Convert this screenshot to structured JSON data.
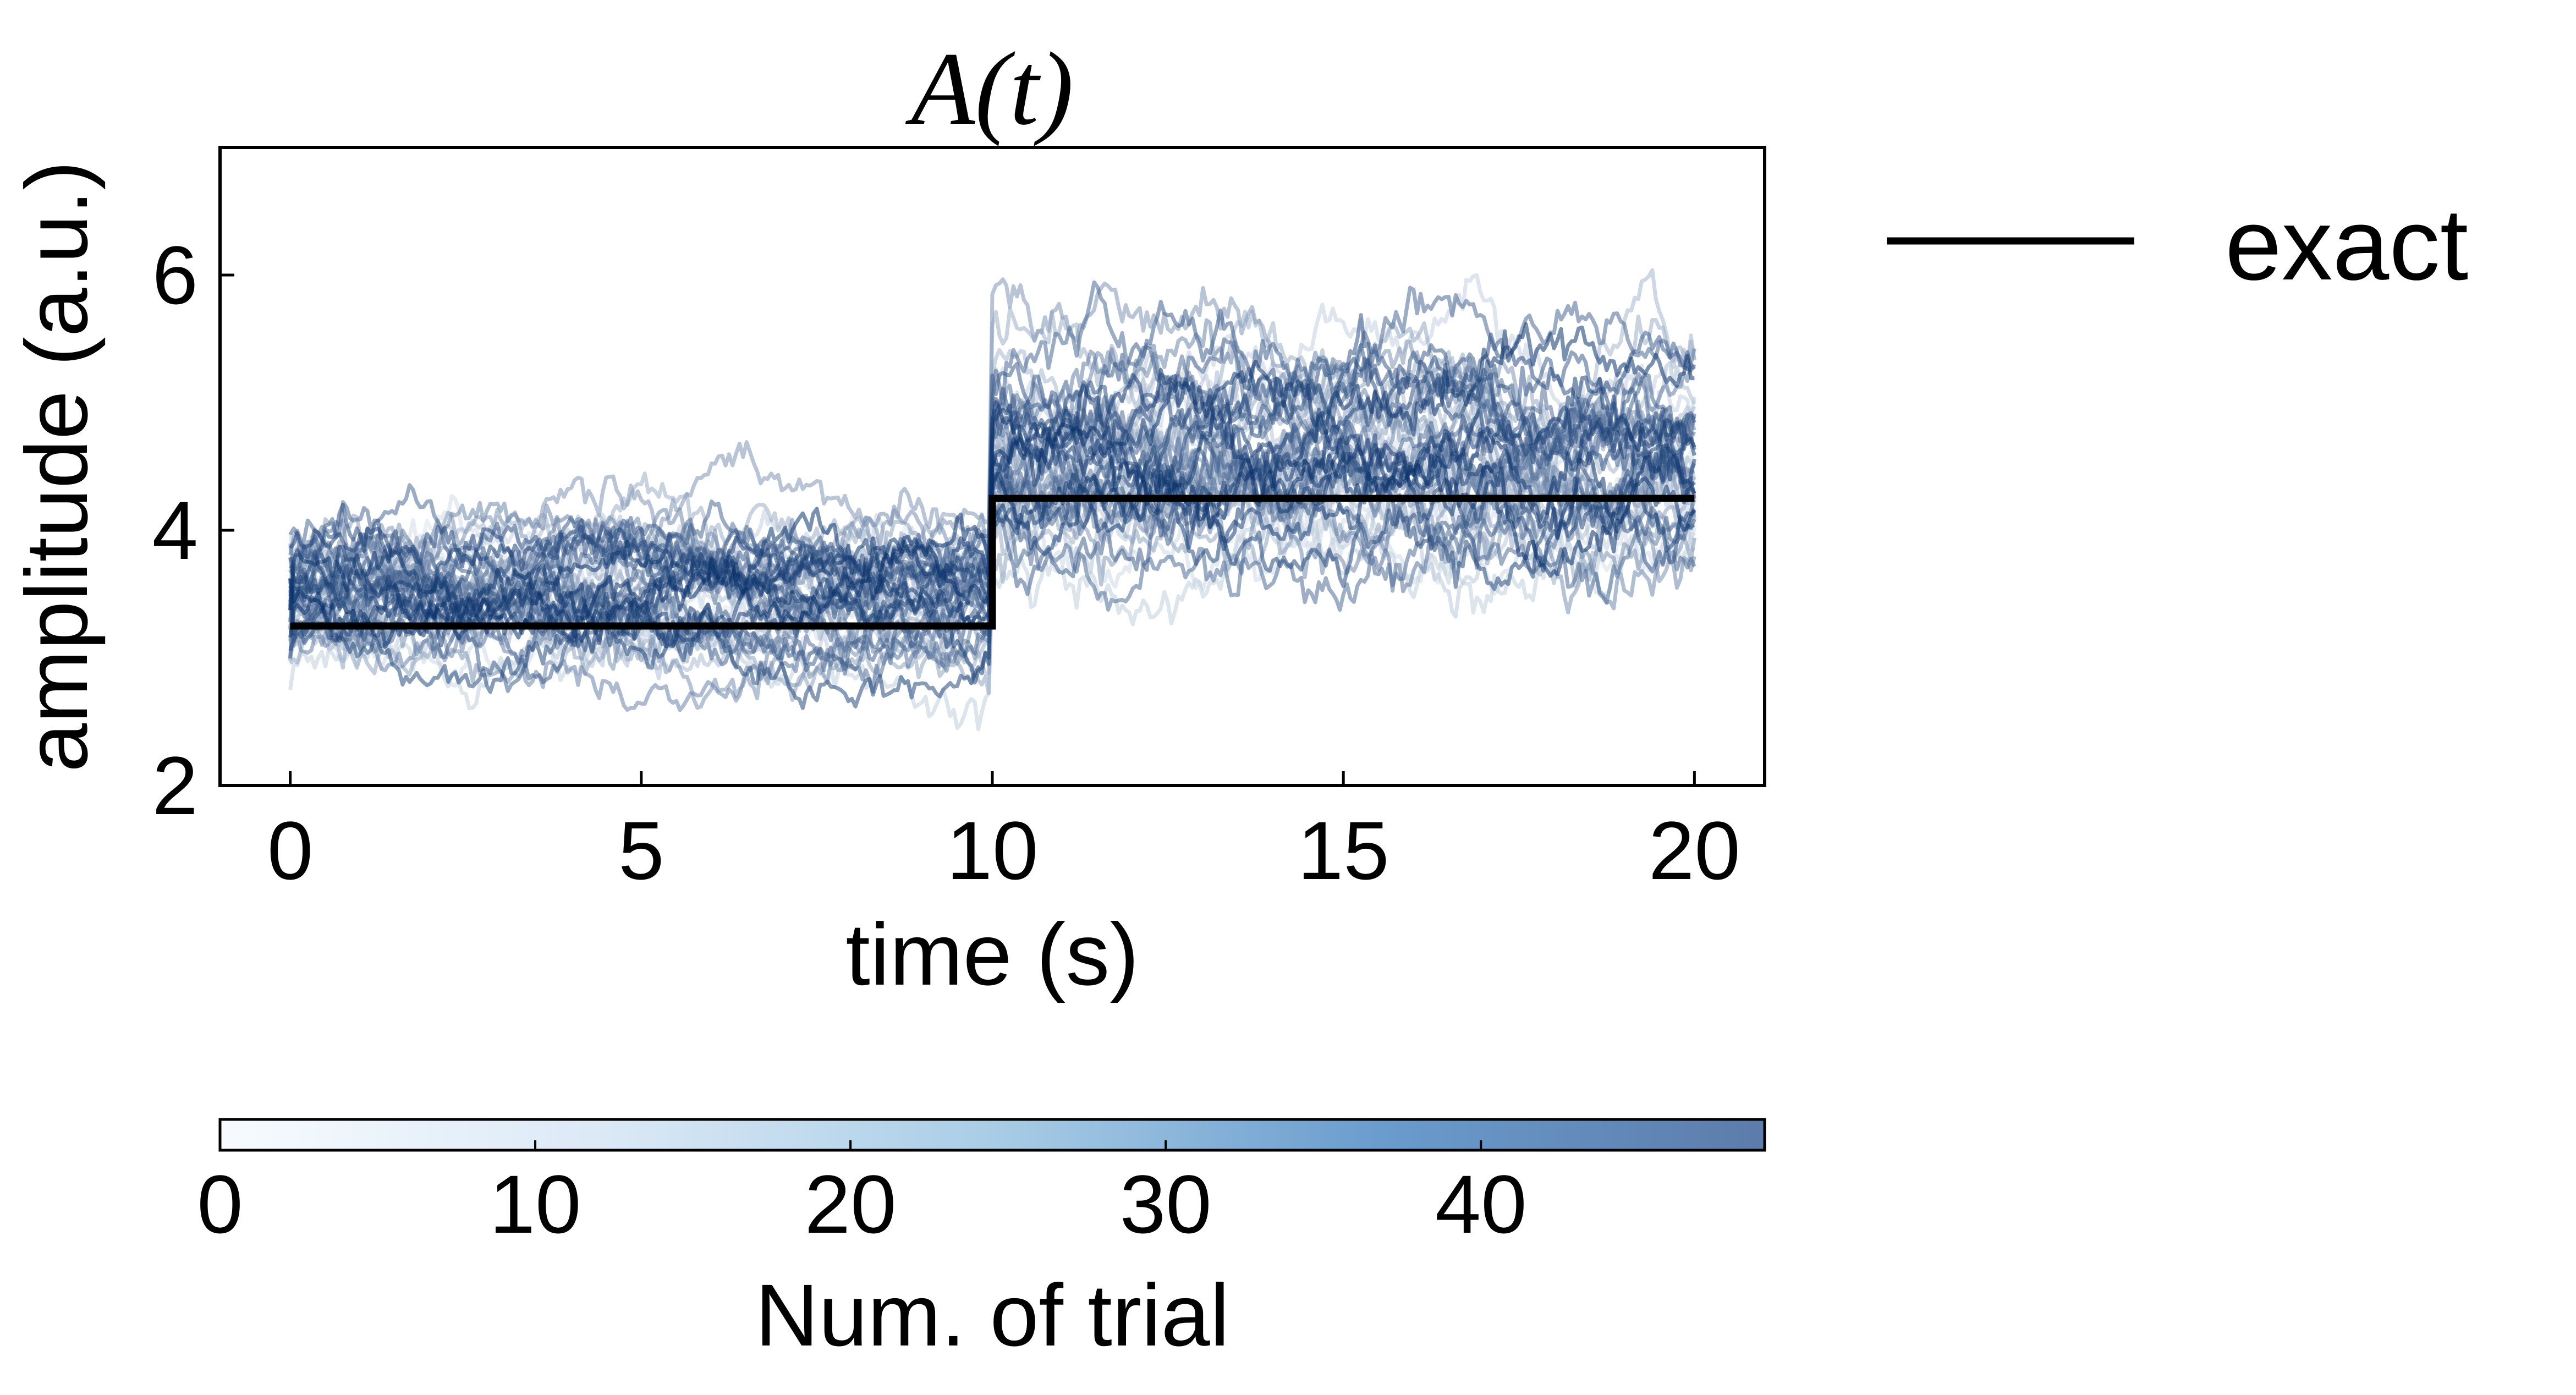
{
  "chart_data": {
    "type": "line",
    "title": "A(t)",
    "xlabel": "time (s)",
    "ylabel": "amplitude (a.u.)",
    "xlim": [
      -1,
      21
    ],
    "ylim": [
      2,
      7
    ],
    "xticks": [
      0,
      5,
      10,
      15,
      20
    ],
    "yticks": [
      2,
      4,
      6
    ],
    "grid": false,
    "legend": {
      "placement": "outside-right",
      "entries": [
        {
          "label": "exact",
          "color": "#000000"
        }
      ]
    },
    "exact": {
      "name": "exact",
      "color": "#000000",
      "x": [
        0,
        10,
        10,
        20
      ],
      "y": [
        3.25,
        3.25,
        4.25,
        4.25
      ]
    },
    "trials": {
      "count": 50,
      "x_range": [
        0,
        20
      ],
      "colormap": "Blues",
      "levels_before_step": [
        3.55,
        3.65,
        3.35,
        3.8,
        3.2,
        3.5,
        3.9,
        3.1,
        3.45,
        3.7,
        3.3,
        3.6,
        3.15,
        3.75,
        3.4,
        3.85,
        3.25,
        3.55,
        3.05,
        3.65,
        3.5,
        3.35,
        3.95,
        3.2,
        3.6,
        3.45,
        3.7,
        3.1,
        3.8,
        3.3,
        3.5,
        3.4,
        3.65,
        3.25,
        3.9,
        3.55,
        3.15,
        3.75,
        3.45,
        3.6,
        3.35,
        3.7,
        3.2,
        3.85,
        3.5,
        3.3,
        3.6,
        3.4,
        3.75,
        3.55
      ],
      "levels_after_step": [
        4.4,
        4.6,
        4.2,
        4.9,
        4.1,
        4.5,
        5.2,
        3.9,
        4.3,
        4.8,
        4.0,
        4.7,
        4.25,
        5.0,
        4.35,
        5.4,
        4.15,
        4.55,
        3.95,
        4.75,
        4.45,
        4.05,
        5.6,
        4.2,
        4.65,
        4.35,
        4.85,
        4.1,
        5.1,
        4.3,
        4.5,
        4.4,
        4.7,
        4.2,
        5.3,
        4.6,
        4.15,
        4.95,
        4.45,
        4.6,
        4.25,
        4.8,
        4.1,
        5.0,
        4.5,
        4.3,
        4.65,
        4.4,
        4.9,
        4.55
      ]
    },
    "colorbar": {
      "label": "Num. of trial",
      "range": [
        0,
        49
      ],
      "ticks": [
        0,
        10,
        20,
        30,
        40
      ],
      "color_low": "#f7fbff",
      "color_high": "#08306b"
    }
  }
}
